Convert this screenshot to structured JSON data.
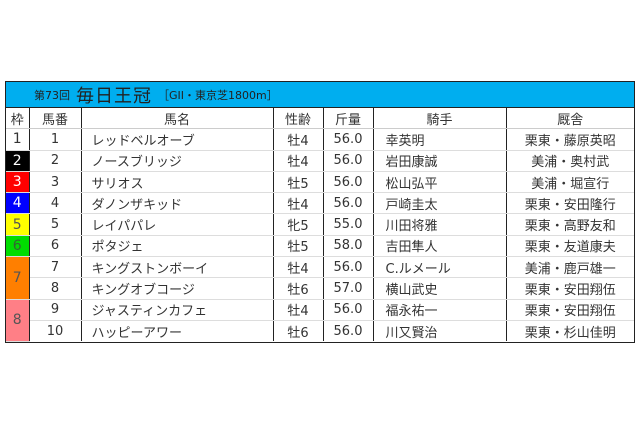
{
  "title": {
    "round": "第73回",
    "race": "毎日王冠",
    "info": "［GII・東京芝1800m］"
  },
  "headers": [
    "枠",
    "馬番",
    "馬名",
    "性齢",
    "斤量",
    "騎手",
    "厩舎"
  ],
  "frames": [
    {
      "label": "1",
      "bg": "#ffffff",
      "fg": "#333333",
      "span": 1
    },
    {
      "label": "2",
      "bg": "#000000",
      "fg": "#ffffff",
      "span": 1
    },
    {
      "label": "3",
      "bg": "#ff0000",
      "fg": "#ffffff",
      "span": 1
    },
    {
      "label": "4",
      "bg": "#0000ff",
      "fg": "#ffffff",
      "span": 1
    },
    {
      "label": "5",
      "bg": "#ffff00",
      "fg": "#555555",
      "span": 1
    },
    {
      "label": "6",
      "bg": "#00dd00",
      "fg": "#336633",
      "span": 1
    },
    {
      "label": "7",
      "bg": "#ff7f00",
      "fg": "#555555",
      "span": 2
    },
    {
      "label": "8",
      "bg": "#ff7f86",
      "fg": "#555555",
      "span": 2
    }
  ],
  "rows": [
    {
      "num": "1",
      "horse": "レッドベルオーブ",
      "sexage": "牡4",
      "weight": "56.0",
      "jockey": "幸英明",
      "trainer": "栗東・藤原英昭"
    },
    {
      "num": "2",
      "horse": "ノースブリッジ",
      "sexage": "牡4",
      "weight": "56.0",
      "jockey": "岩田康誠",
      "trainer": "美浦・奥村武"
    },
    {
      "num": "3",
      "horse": "サリオス",
      "sexage": "牡5",
      "weight": "56.0",
      "jockey": "松山弘平",
      "trainer": "美浦・堀宣行"
    },
    {
      "num": "4",
      "horse": "ダノンザキッド",
      "sexage": "牡4",
      "weight": "56.0",
      "jockey": "戸崎圭太",
      "trainer": "栗東・安田隆行"
    },
    {
      "num": "5",
      "horse": "レイパパレ",
      "sexage": "牝5",
      "weight": "55.0",
      "jockey": "川田将雅",
      "trainer": "栗東・高野友和"
    },
    {
      "num": "6",
      "horse": "ポタジェ",
      "sexage": "牡5",
      "weight": "58.0",
      "jockey": "吉田隼人",
      "trainer": "栗東・友道康夫"
    },
    {
      "num": "7",
      "horse": "キングストンボーイ",
      "sexage": "牡4",
      "weight": "56.0",
      "jockey": "C.ルメール",
      "trainer": "美浦・鹿戸雄一"
    },
    {
      "num": "8",
      "horse": "キングオブコージ",
      "sexage": "牡6",
      "weight": "57.0",
      "jockey": "横山武史",
      "trainer": "栗東・安田翔伍"
    },
    {
      "num": "9",
      "horse": "ジャスティンカフェ",
      "sexage": "牡4",
      "weight": "56.0",
      "jockey": "福永祐一",
      "trainer": "栗東・安田翔伍"
    },
    {
      "num": "10",
      "horse": "ハッピーアワー",
      "sexage": "牡6",
      "weight": "56.0",
      "jockey": "川又賢治",
      "trainer": "栗東・杉山佳明"
    }
  ],
  "accent": "#00aeef"
}
